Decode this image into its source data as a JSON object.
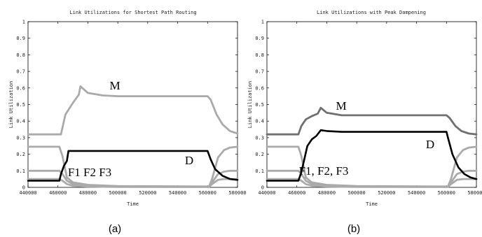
{
  "chart_data": [
    {
      "type": "line",
      "title": "Link Utilizations for Shortest Path Routing",
      "xlabel": "Time",
      "ylabel": "Link Utilization",
      "caption": "(a)",
      "xlim": [
        440000,
        580000
      ],
      "ylim": [
        0,
        1
      ],
      "xticks": [
        "440000",
        "460000",
        "480000",
        "500000",
        "520000",
        "540000",
        "560000",
        "580000"
      ],
      "yticks": [
        "0",
        "0.1",
        "0.2",
        "0.3",
        "0.4",
        "0.5",
        "0.6",
        "0.7",
        "0.8",
        "0.9",
        "1"
      ],
      "annotations": [
        {
          "name": "annotation-m",
          "text": "M"
        },
        {
          "name": "annotation-d",
          "text": "D"
        },
        {
          "name": "annotation-f",
          "text": "F1 F2 F3"
        }
      ],
      "series": [
        {
          "color": "#aaaaaa",
          "x": [
            440000,
            462000,
            465000,
            470000,
            474000,
            475000,
            480000,
            490000,
            500000,
            560000,
            562000,
            566000,
            570000,
            575000,
            580000
          ],
          "y": [
            0.32,
            0.32,
            0.44,
            0.51,
            0.56,
            0.61,
            0.57,
            0.555,
            0.55,
            0.55,
            0.53,
            0.44,
            0.38,
            0.34,
            0.325
          ]
        },
        {
          "color": "#000000",
          "x": [
            440000,
            461000,
            462000,
            464000,
            466000,
            467000,
            560000,
            562000,
            565000,
            570000,
            575000,
            580000
          ],
          "y": [
            0.04,
            0.04,
            0.08,
            0.13,
            0.16,
            0.22,
            0.22,
            0.17,
            0.11,
            0.07,
            0.05,
            0.045
          ]
        },
        {
          "color": "#aaaaaa",
          "x": [
            440000,
            461000,
            463000,
            466000,
            470000,
            480000,
            500000,
            561000,
            563000,
            567000,
            571000,
            575000,
            580000
          ],
          "y": [
            0.245,
            0.245,
            0.19,
            0.06,
            0.03,
            0.015,
            0.008,
            0.005,
            0.05,
            0.18,
            0.225,
            0.24,
            0.245
          ]
        },
        {
          "color": "#aaaaaa",
          "x": [
            440000,
            461000,
            463000,
            466000,
            470000,
            480000,
            500000,
            561000,
            563000,
            567000,
            571000,
            575000,
            580000
          ],
          "y": [
            0.1,
            0.1,
            0.08,
            0.04,
            0.02,
            0.01,
            0.006,
            0.004,
            0.03,
            0.08,
            0.095,
            0.1,
            0.1
          ]
        },
        {
          "color": "#aaaaaa",
          "x": [
            440000,
            461000,
            463000,
            466000,
            470000,
            480000,
            500000,
            561000,
            563000,
            567000,
            571000,
            575000,
            580000
          ],
          "y": [
            0.05,
            0.05,
            0.04,
            0.02,
            0.01,
            0.005,
            0.003,
            0.002,
            0.02,
            0.045,
            0.05,
            0.05,
            0.05
          ]
        }
      ]
    },
    {
      "type": "line",
      "title": "Link Utilizations with Peak Dampening",
      "xlabel": "Time",
      "ylabel": "Link Utilization",
      "caption": "(b)",
      "xlim": [
        440000,
        580000
      ],
      "ylim": [
        0,
        1
      ],
      "xticks": [
        "440000",
        "460000",
        "480000",
        "500000",
        "520000",
        "540000",
        "560000",
        "580000"
      ],
      "yticks": [
        "0",
        "0.1",
        "0.2",
        "0.3",
        "0.4",
        "0.5",
        "0.6",
        "0.7",
        "0.8",
        "0.9",
        "1"
      ],
      "annotations": [
        {
          "name": "annotation-m",
          "text": "M"
        },
        {
          "name": "annotation-d",
          "text": "D"
        },
        {
          "name": "annotation-f",
          "text": "F1, F2, F3"
        }
      ],
      "series": [
        {
          "color": "#707070",
          "x": [
            440000,
            461000,
            463000,
            466000,
            470000,
            474000,
            476000,
            480000,
            490000,
            560000,
            562000,
            566000,
            570000,
            575000,
            580000
          ],
          "y": [
            0.32,
            0.32,
            0.37,
            0.41,
            0.43,
            0.445,
            0.48,
            0.45,
            0.435,
            0.435,
            0.42,
            0.37,
            0.34,
            0.325,
            0.32
          ]
        },
        {
          "color": "#000000",
          "x": [
            440000,
            461000,
            463000,
            465000,
            467000,
            470000,
            473000,
            476000,
            480000,
            490000,
            560000,
            561000,
            564000,
            568000,
            572000,
            576000,
            580000
          ],
          "y": [
            0.04,
            0.04,
            0.09,
            0.17,
            0.25,
            0.29,
            0.31,
            0.345,
            0.34,
            0.335,
            0.335,
            0.3,
            0.2,
            0.12,
            0.08,
            0.06,
            0.05
          ]
        },
        {
          "color": "#aaaaaa",
          "x": [
            440000,
            461000,
            463000,
            466000,
            470000,
            480000,
            500000,
            561000,
            563000,
            567000,
            571000,
            575000,
            580000
          ],
          "y": [
            0.245,
            0.245,
            0.19,
            0.06,
            0.03,
            0.015,
            0.008,
            0.005,
            0.05,
            0.18,
            0.225,
            0.24,
            0.245
          ]
        },
        {
          "color": "#aaaaaa",
          "x": [
            440000,
            461000,
            463000,
            466000,
            470000,
            480000,
            500000,
            561000,
            563000,
            567000,
            571000,
            575000,
            580000
          ],
          "y": [
            0.1,
            0.1,
            0.08,
            0.04,
            0.02,
            0.01,
            0.006,
            0.004,
            0.03,
            0.08,
            0.095,
            0.1,
            0.1
          ]
        },
        {
          "color": "#aaaaaa",
          "x": [
            440000,
            461000,
            463000,
            466000,
            470000,
            480000,
            500000,
            561000,
            563000,
            567000,
            571000,
            575000,
            580000
          ],
          "y": [
            0.05,
            0.05,
            0.04,
            0.02,
            0.01,
            0.005,
            0.003,
            0.002,
            0.02,
            0.045,
            0.05,
            0.05,
            0.05
          ]
        }
      ]
    }
  ]
}
